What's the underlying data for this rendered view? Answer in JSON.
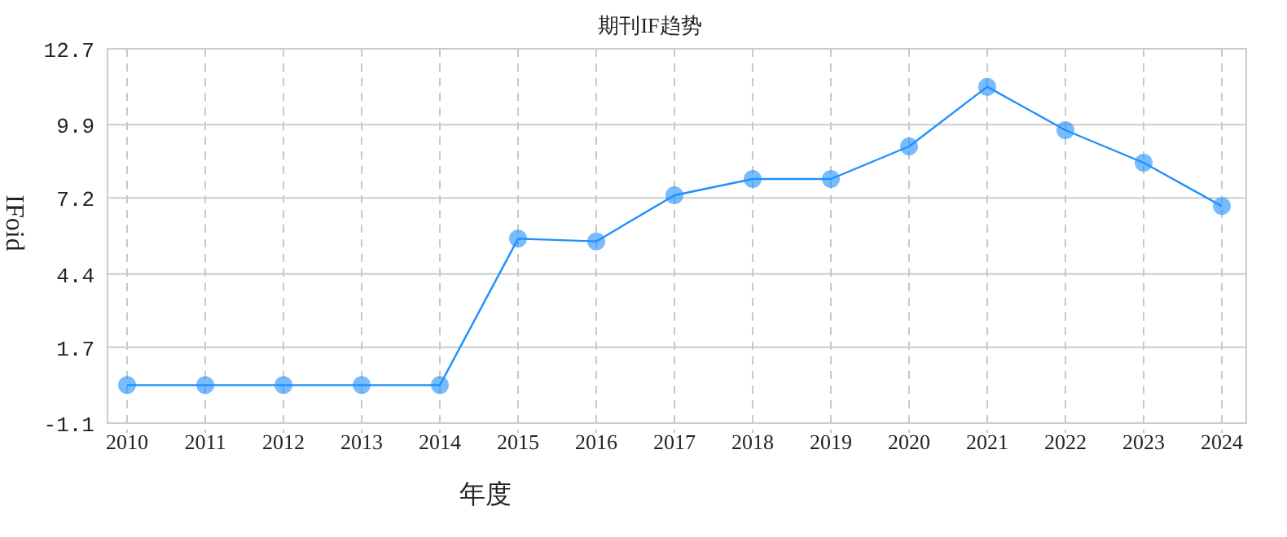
{
  "chart_data": {
    "type": "line",
    "title": "期刊IF趋势",
    "xlabel": "年度",
    "ylabel": "IFoid",
    "categories": [
      "2010",
      "2011",
      "2012",
      "2013",
      "2014",
      "2015",
      "2016",
      "2017",
      "2018",
      "2019",
      "2020",
      "2021",
      "2022",
      "2023",
      "2024"
    ],
    "series": [
      {
        "color": "#1e90ff",
        "values": [
          0.3,
          0.3,
          0.3,
          0.3,
          0.3,
          5.7,
          5.6,
          7.3,
          7.9,
          7.9,
          9.1,
          11.3,
          9.7,
          8.5,
          6.9
        ]
      }
    ],
    "ylim": [
      -1.1,
      12.7
    ],
    "yticks": [
      -1.1,
      1.7,
      4.4,
      7.2,
      9.9,
      12.7
    ],
    "grid": true,
    "marker": "circle",
    "line_style": "solid"
  }
}
